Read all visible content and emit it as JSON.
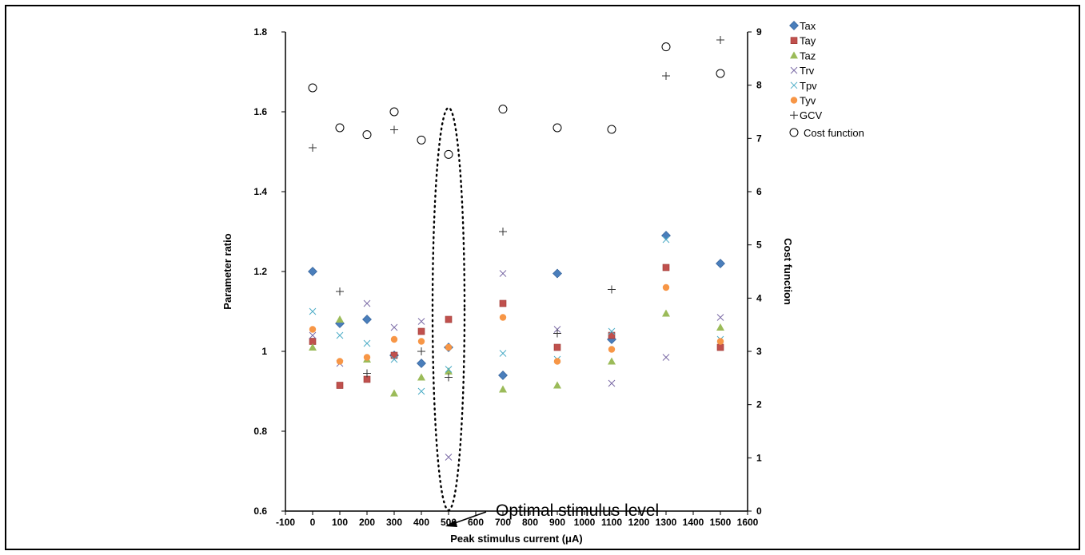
{
  "chart_data": {
    "type": "scatter",
    "title": "",
    "xlabel": "Peak stimulus current (μA)",
    "ylabel_left": "Parameter ratio",
    "ylabel_right": "Cost function",
    "xlim": [
      -100,
      1600
    ],
    "ylim_left": [
      0.6,
      1.8
    ],
    "ylim_right": [
      0,
      9
    ],
    "x_ticks": [
      "-100",
      "0",
      "100",
      "200",
      "300",
      "400",
      "500",
      "600",
      "700",
      "800",
      "900",
      "1000",
      "1100",
      "1200",
      "1300",
      "1400",
      "1500",
      "1600"
    ],
    "y_left_ticks": [
      "0.6",
      "0.8",
      "1",
      "1.2",
      "1.4",
      "1.6",
      "1.8"
    ],
    "y_right_ticks": [
      "0",
      "1",
      "2",
      "3",
      "4",
      "5",
      "6",
      "7",
      "8",
      "9"
    ],
    "grid": false,
    "legend_position": "top-right",
    "x": [
      0,
      100,
      200,
      300,
      400,
      500,
      700,
      900,
      1100,
      1300,
      1500
    ],
    "series": [
      {
        "name": "Tax",
        "axis": "left",
        "marker": "diamond",
        "color": "#4a7ebb",
        "values": [
          1.2,
          1.07,
          1.08,
          0.99,
          0.97,
          1.01,
          0.94,
          1.195,
          1.03,
          1.29,
          1.22
        ]
      },
      {
        "name": "Tay",
        "axis": "left",
        "marker": "square",
        "color": "#c0504d",
        "values": [
          1.025,
          0.915,
          0.93,
          0.99,
          1.05,
          1.08,
          1.12,
          1.01,
          1.04,
          1.21,
          1.01
        ]
      },
      {
        "name": "Taz",
        "axis": "left",
        "marker": "triangle",
        "color": "#9bbb59",
        "values": [
          1.01,
          1.08,
          0.98,
          0.895,
          0.935,
          0.95,
          0.905,
          0.915,
          0.975,
          1.095,
          1.06
        ]
      },
      {
        "name": "Trv",
        "axis": "left",
        "marker": "x",
        "color": "#7b6ba6",
        "values": [
          1.04,
          0.97,
          1.12,
          1.06,
          1.075,
          0.735,
          1.195,
          1.055,
          0.92,
          0.985,
          1.085
        ]
      },
      {
        "name": "Tpv",
        "axis": "left",
        "marker": "x",
        "color": "#4bacc6",
        "values": [
          1.1,
          1.04,
          1.02,
          0.98,
          0.9,
          0.955,
          0.995,
          0.98,
          1.05,
          1.28,
          1.03
        ]
      },
      {
        "name": "Tyv",
        "axis": "left",
        "marker": "circle",
        "color": "#f79646",
        "values": [
          1.055,
          0.975,
          0.985,
          1.03,
          1.025,
          1.01,
          1.085,
          0.975,
          1.005,
          1.16,
          1.025
        ]
      },
      {
        "name": "GCV",
        "axis": "left",
        "marker": "plus",
        "color": "#333333",
        "values": [
          1.51,
          1.15,
          0.945,
          1.555,
          1.0,
          0.935,
          1.3,
          1.045,
          1.155,
          1.69,
          1.78
        ]
      },
      {
        "name": "Cost function",
        "axis": "right",
        "marker": "open-circle",
        "color": "#000000",
        "values": [
          7.95,
          7.2,
          7.07,
          7.5,
          6.97,
          6.7,
          7.55,
          7.2,
          7.17,
          8.72,
          8.22
        ]
      }
    ],
    "annotation": {
      "text": "Optimal stimulus level",
      "target_x": 500
    }
  }
}
